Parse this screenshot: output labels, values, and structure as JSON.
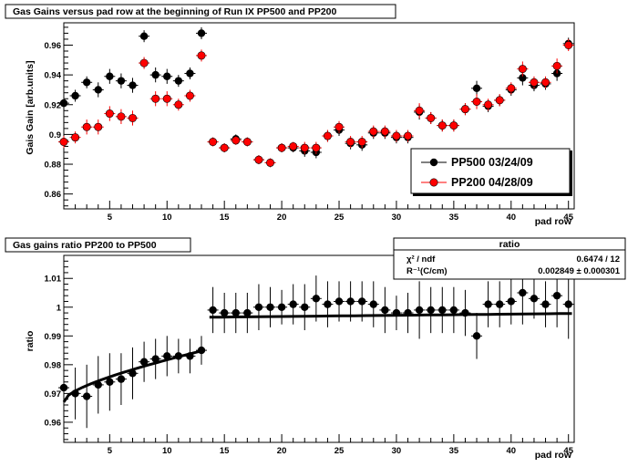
{
  "chart_data": [
    {
      "type": "scatter",
      "title": "Gas Gains versus pad row at the beginning of Run IX PP500 and PP200",
      "xlabel": "pad row",
      "ylabel": "Gais Gain [arb.units]",
      "xlim": [
        1,
        45.5
      ],
      "ylim": [
        0.85,
        0.975
      ],
      "x_ticks": [
        5,
        10,
        15,
        20,
        25,
        30,
        35,
        40,
        45
      ],
      "y_ticks": [
        0.86,
        0.88,
        0.9,
        0.92,
        0.94,
        0.96
      ],
      "legend_position": "bottom-right",
      "series": [
        {
          "name": "PP500 03/24/09",
          "color": "#000000",
          "x": [
            1,
            2,
            3,
            4,
            5,
            6,
            7,
            8,
            9,
            10,
            11,
            12,
            13,
            14,
            15,
            16,
            17,
            18,
            19,
            20,
            21,
            22,
            23,
            24,
            25,
            26,
            27,
            28,
            29,
            30,
            31,
            32,
            33,
            34,
            35,
            36,
            37,
            38,
            39,
            40,
            41,
            42,
            43,
            44,
            45
          ],
          "y": [
            0.921,
            0.926,
            0.935,
            0.93,
            0.939,
            0.936,
            0.933,
            0.966,
            0.94,
            0.939,
            0.936,
            0.941,
            0.968,
            0.895,
            0.891,
            0.897,
            0.895,
            0.883,
            0.881,
            0.891,
            0.891,
            0.889,
            0.888,
            0.899,
            0.903,
            0.894,
            0.893,
            0.901,
            0.901,
            0.898,
            0.898,
            0.915,
            0.911,
            0.906,
            0.906,
            0.917,
            0.931,
            0.919,
            0.923,
            0.93,
            0.938,
            0.933,
            0.934,
            0.941,
            0.961
          ],
          "yerr": [
            0.004,
            0.004,
            0.004,
            0.005,
            0.005,
            0.005,
            0.005,
            0.004,
            0.005,
            0.005,
            0.004,
            0.004,
            0.004,
            0.003,
            0.003,
            0.003,
            0.003,
            0.003,
            0.003,
            0.003,
            0.003,
            0.004,
            0.004,
            0.004,
            0.004,
            0.004,
            0.004,
            0.004,
            0.004,
            0.004,
            0.004,
            0.005,
            0.004,
            0.004,
            0.004,
            0.004,
            0.005,
            0.004,
            0.004,
            0.004,
            0.005,
            0.004,
            0.004,
            0.005,
            0.004
          ]
        },
        {
          "name": "PP200 04/28/09",
          "color": "#ff0000",
          "x": [
            1,
            2,
            3,
            4,
            5,
            6,
            7,
            8,
            9,
            10,
            11,
            12,
            13,
            14,
            15,
            16,
            17,
            18,
            19,
            20,
            21,
            22,
            23,
            24,
            25,
            26,
            27,
            28,
            29,
            30,
            31,
            32,
            33,
            34,
            35,
            36,
            37,
            38,
            39,
            40,
            41,
            42,
            43,
            44,
            45
          ],
          "y": [
            0.895,
            0.898,
            0.905,
            0.905,
            0.914,
            0.912,
            0.911,
            0.948,
            0.924,
            0.924,
            0.92,
            0.926,
            0.953,
            0.895,
            0.891,
            0.896,
            0.895,
            0.883,
            0.881,
            0.891,
            0.892,
            0.891,
            0.891,
            0.899,
            0.905,
            0.895,
            0.895,
            0.902,
            0.902,
            0.899,
            0.899,
            0.916,
            0.911,
            0.906,
            0.906,
            0.917,
            0.922,
            0.92,
            0.923,
            0.931,
            0.944,
            0.935,
            0.935,
            0.946,
            0.96
          ],
          "yerr": [
            0.004,
            0.004,
            0.005,
            0.005,
            0.005,
            0.005,
            0.005,
            0.004,
            0.005,
            0.005,
            0.004,
            0.004,
            0.004,
            0.003,
            0.003,
            0.003,
            0.003,
            0.003,
            0.003,
            0.003,
            0.003,
            0.004,
            0.004,
            0.004,
            0.004,
            0.004,
            0.004,
            0.004,
            0.004,
            0.004,
            0.004,
            0.005,
            0.004,
            0.004,
            0.004,
            0.004,
            0.005,
            0.004,
            0.004,
            0.004,
            0.005,
            0.004,
            0.004,
            0.005,
            0.004
          ]
        }
      ]
    },
    {
      "type": "scatter",
      "title": "Gas gains ratio PP200 to PP500",
      "xlabel": "pad row",
      "ylabel": "ratio",
      "xlim": [
        1,
        45.5
      ],
      "ylim": [
        0.953,
        1.018
      ],
      "x_ticks": [
        5,
        10,
        15,
        20,
        25,
        30,
        35,
        40,
        45
      ],
      "y_ticks": [
        0.96,
        0.97,
        0.98,
        0.99,
        1,
        1.01
      ],
      "series": [
        {
          "name": "ratio",
          "color": "#000000",
          "x": [
            1,
            2,
            3,
            4,
            5,
            6,
            7,
            8,
            9,
            10,
            11,
            12,
            13,
            14,
            15,
            16,
            17,
            18,
            19,
            20,
            21,
            22,
            23,
            24,
            25,
            26,
            27,
            28,
            29,
            30,
            31,
            32,
            33,
            34,
            35,
            36,
            37,
            38,
            39,
            40,
            41,
            42,
            43,
            44,
            45
          ],
          "y": [
            0.972,
            0.97,
            0.969,
            0.973,
            0.974,
            0.975,
            0.977,
            0.981,
            0.982,
            0.983,
            0.983,
            0.983,
            0.985,
            0.999,
            0.998,
            0.998,
            0.998,
            1.0,
            1.0,
            1.0,
            1.001,
            1.0,
            1.003,
            1.001,
            1.002,
            1.002,
            1.002,
            1.001,
            0.999,
            0.998,
            0.998,
            0.999,
            0.999,
            0.999,
            0.999,
            0.998,
            0.99,
            1.001,
            1.001,
            1.002,
            1.005,
            1.003,
            1.001,
            1.004,
            1.001
          ],
          "yerr": [
            0.008,
            0.009,
            0.011,
            0.01,
            0.01,
            0.009,
            0.009,
            0.007,
            0.007,
            0.007,
            0.006,
            0.006,
            0.005,
            0.008,
            0.007,
            0.007,
            0.007,
            0.008,
            0.007,
            0.006,
            0.007,
            0.008,
            0.008,
            0.008,
            0.007,
            0.007,
            0.007,
            0.008,
            0.008,
            0.006,
            0.007,
            0.01,
            0.008,
            0.008,
            0.008,
            0.008,
            0.008,
            0.008,
            0.008,
            0.008,
            0.011,
            0.007,
            0.008,
            0.011,
            0.012
          ]
        }
      ],
      "fit": {
        "segments": [
          {
            "x0": 1,
            "x1": 13.2,
            "y0": 0.967,
            "y1": 0.985,
            "curve": "rising"
          },
          {
            "x0": 13.7,
            "x1": 45.3,
            "y0": 0.9965,
            "y1": 0.9978,
            "curve": "flat"
          }
        ]
      },
      "stats_box": {
        "title": "ratio",
        "rows": [
          {
            "label": "χ² / ndf",
            "value": "0.6474 / 12"
          },
          {
            "label": "R⁻¹(C/cm)",
            "value": "0.002849 ± 0.000301"
          }
        ]
      }
    }
  ]
}
